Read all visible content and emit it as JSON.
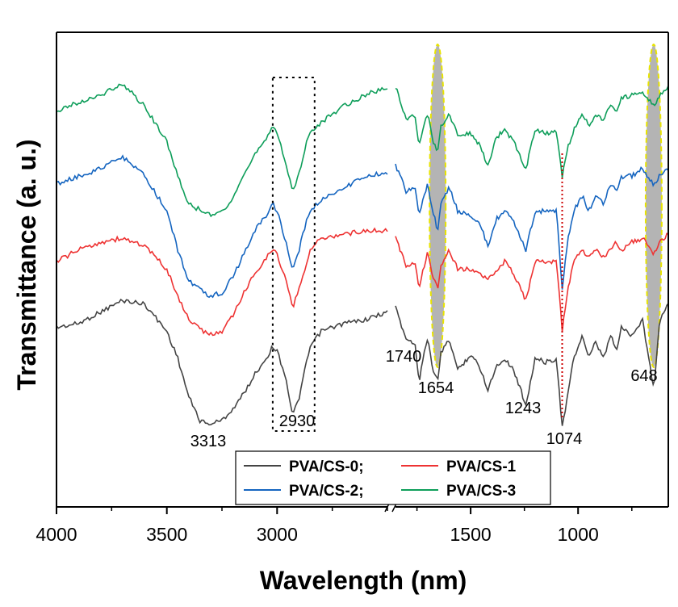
{
  "chart_data": {
    "type": "line",
    "xlabel": "Wavelength (nm)",
    "ylabel": "Transmittance (a. u.)",
    "x_axis_break": true,
    "x_segments": [
      {
        "range": [
          4000,
          2500
        ],
        "ticks": [
          4000,
          3500,
          3000
        ]
      },
      {
        "range": [
          1850,
          580
        ],
        "ticks": [
          1500,
          1000
        ]
      }
    ],
    "tick_labels": [
      "4000",
      "3500",
      "3000",
      "1500",
      "1000"
    ],
    "annotations": [
      {
        "text": "3313",
        "x": 3313
      },
      {
        "text": "2930",
        "x": 2930
      },
      {
        "text": "1740",
        "x": 1740
      },
      {
        "text": "1654",
        "x": 1654
      },
      {
        "text": "1243",
        "x": 1243
      },
      {
        "text": "1074",
        "x": 1074
      },
      {
        "text": "648",
        "x": 648
      }
    ],
    "highlight_regions": [
      {
        "x": 1654,
        "shape": "ellipse",
        "color": "#b4b4b4"
      },
      {
        "x": 648,
        "shape": "ellipse",
        "color": "#b4b4b4"
      }
    ],
    "highlight_box": {
      "x_range": [
        3020,
        2830
      ]
    },
    "reference_line": {
      "x": 1074,
      "color": "#cc0000",
      "style": "dotted"
    },
    "legend": {
      "placement": "bottom-center",
      "entries": [
        "PVA/CS-0;",
        "PVA/CS-1",
        "PVA/CS-2;",
        "PVA/CS-3"
      ]
    },
    "series": [
      {
        "name": "PVA/CS-0",
        "color": "#444444",
        "high": [
          [
            4000,
            72
          ],
          [
            3900,
            71
          ],
          [
            3800,
            68
          ],
          [
            3700,
            65
          ],
          [
            3600,
            66
          ],
          [
            3500,
            73
          ],
          [
            3450,
            80
          ],
          [
            3400,
            90
          ],
          [
            3350,
            96
          ],
          [
            3313,
            97
          ],
          [
            3250,
            96
          ],
          [
            3200,
            93
          ],
          [
            3150,
            89
          ],
          [
            3100,
            84
          ],
          [
            3050,
            80
          ],
          [
            3020,
            77
          ],
          [
            3000,
            78
          ],
          [
            2960,
            85
          ],
          [
            2930,
            95
          ],
          [
            2900,
            90
          ],
          [
            2870,
            82
          ],
          [
            2850,
            77
          ],
          [
            2800,
            73
          ],
          [
            2700,
            71
          ],
          [
            2600,
            70
          ],
          [
            2500,
            68
          ]
        ],
        "low": [
          [
            1850,
            67
          ],
          [
            1800,
            75
          ],
          [
            1760,
            76
          ],
          [
            1740,
            86
          ],
          [
            1720,
            79
          ],
          [
            1700,
            75
          ],
          [
            1680,
            82
          ],
          [
            1654,
            86
          ],
          [
            1640,
            79
          ],
          [
            1600,
            75
          ],
          [
            1560,
            83
          ],
          [
            1500,
            79
          ],
          [
            1460,
            82
          ],
          [
            1420,
            88
          ],
          [
            1380,
            82
          ],
          [
            1340,
            80
          ],
          [
            1300,
            83
          ],
          [
            1243,
            92
          ],
          [
            1200,
            80
          ],
          [
            1150,
            81
          ],
          [
            1100,
            80
          ],
          [
            1074,
            98
          ],
          [
            1050,
            90
          ],
          [
            1020,
            80
          ],
          [
            980,
            74
          ],
          [
            950,
            80
          ],
          [
            920,
            76
          ],
          [
            880,
            80
          ],
          [
            850,
            74
          ],
          [
            820,
            78
          ],
          [
            800,
            72
          ],
          [
            750,
            74
          ],
          [
            700,
            70
          ],
          [
            648,
            88
          ],
          [
            620,
            70
          ],
          [
            580,
            66
          ]
        ]
      },
      {
        "name": "PVA/CS-1",
        "color": "#ee3333",
        "high": [
          [
            4000,
            55
          ],
          [
            3900,
            52
          ],
          [
            3800,
            50
          ],
          [
            3700,
            49
          ],
          [
            3600,
            51
          ],
          [
            3500,
            57
          ],
          [
            3450,
            64
          ],
          [
            3400,
            70
          ],
          [
            3313,
            74
          ],
          [
            3250,
            73
          ],
          [
            3200,
            69
          ],
          [
            3150,
            63
          ],
          [
            3100,
            58
          ],
          [
            3050,
            54
          ],
          [
            3020,
            52
          ],
          [
            3000,
            53
          ],
          [
            2960,
            60
          ],
          [
            2930,
            67
          ],
          [
            2900,
            62
          ],
          [
            2870,
            56
          ],
          [
            2850,
            52
          ],
          [
            2800,
            49
          ],
          [
            2700,
            48
          ],
          [
            2600,
            47
          ],
          [
            2500,
            47
          ]
        ],
        "low": [
          [
            1850,
            49
          ],
          [
            1800,
            56
          ],
          [
            1760,
            55
          ],
          [
            1740,
            62
          ],
          [
            1720,
            57
          ],
          [
            1700,
            52
          ],
          [
            1680,
            58
          ],
          [
            1654,
            62
          ],
          [
            1640,
            56
          ],
          [
            1600,
            52
          ],
          [
            1560,
            57
          ],
          [
            1500,
            57
          ],
          [
            1460,
            58
          ],
          [
            1420,
            60
          ],
          [
            1380,
            57
          ],
          [
            1340,
            55
          ],
          [
            1300,
            58
          ],
          [
            1243,
            65
          ],
          [
            1200,
            55
          ],
          [
            1150,
            55
          ],
          [
            1100,
            55
          ],
          [
            1074,
            73
          ],
          [
            1050,
            63
          ],
          [
            1020,
            55
          ],
          [
            980,
            52
          ],
          [
            950,
            54
          ],
          [
            920,
            52
          ],
          [
            880,
            54
          ],
          [
            850,
            52
          ],
          [
            820,
            50
          ],
          [
            800,
            52
          ],
          [
            750,
            50
          ],
          [
            700,
            49
          ],
          [
            648,
            53
          ],
          [
            620,
            50
          ],
          [
            580,
            48
          ]
        ]
      },
      {
        "name": "PVA/CS-2",
        "color": "#1565c0",
        "high": [
          [
            4000,
            35
          ],
          [
            3900,
            33
          ],
          [
            3800,
            31
          ],
          [
            3700,
            28
          ],
          [
            3600,
            33
          ],
          [
            3500,
            42
          ],
          [
            3450,
            52
          ],
          [
            3400,
            60
          ],
          [
            3313,
            64
          ],
          [
            3250,
            63
          ],
          [
            3200,
            59
          ],
          [
            3150,
            53
          ],
          [
            3100,
            47
          ],
          [
            3050,
            43
          ],
          [
            3020,
            40
          ],
          [
            3000,
            42
          ],
          [
            2960,
            50
          ],
          [
            2930,
            57
          ],
          [
            2900,
            52
          ],
          [
            2870,
            45
          ],
          [
            2850,
            42
          ],
          [
            2800,
            39
          ],
          [
            2700,
            36
          ],
          [
            2600,
            33
          ],
          [
            2500,
            32
          ]
        ],
        "low": [
          [
            1850,
            30
          ],
          [
            1800,
            37
          ],
          [
            1760,
            36
          ],
          [
            1740,
            43
          ],
          [
            1720,
            38
          ],
          [
            1700,
            35
          ],
          [
            1680,
            41
          ],
          [
            1654,
            47
          ],
          [
            1640,
            40
          ],
          [
            1600,
            36
          ],
          [
            1560,
            42
          ],
          [
            1500,
            43
          ],
          [
            1460,
            45
          ],
          [
            1420,
            51
          ],
          [
            1380,
            44
          ],
          [
            1340,
            42
          ],
          [
            1300,
            45
          ],
          [
            1243,
            52
          ],
          [
            1200,
            42
          ],
          [
            1150,
            42
          ],
          [
            1100,
            42
          ],
          [
            1074,
            62
          ],
          [
            1050,
            50
          ],
          [
            1020,
            42
          ],
          [
            980,
            38
          ],
          [
            950,
            42
          ],
          [
            920,
            38
          ],
          [
            880,
            40
          ],
          [
            850,
            35
          ],
          [
            820,
            37
          ],
          [
            800,
            33
          ],
          [
            750,
            33
          ],
          [
            700,
            31
          ],
          [
            648,
            35
          ],
          [
            620,
            33
          ],
          [
            580,
            31
          ]
        ]
      },
      {
        "name": "PVA/CS-3",
        "color": "#0e9e5a",
        "high": [
          [
            4000,
            16
          ],
          [
            3900,
            14
          ],
          [
            3800,
            12
          ],
          [
            3700,
            9
          ],
          [
            3600,
            15
          ],
          [
            3500,
            24
          ],
          [
            3450,
            33
          ],
          [
            3400,
            40
          ],
          [
            3313,
            43
          ],
          [
            3250,
            42
          ],
          [
            3200,
            39
          ],
          [
            3150,
            33
          ],
          [
            3100,
            27
          ],
          [
            3050,
            23
          ],
          [
            3020,
            20
          ],
          [
            3000,
            22
          ],
          [
            2960,
            30
          ],
          [
            2930,
            37
          ],
          [
            2900,
            32
          ],
          [
            2870,
            25
          ],
          [
            2850,
            22
          ],
          [
            2800,
            19
          ],
          [
            2700,
            15
          ],
          [
            2600,
            12
          ],
          [
            2500,
            10
          ]
        ],
        "low": [
          [
            1850,
            10
          ],
          [
            1800,
            18
          ],
          [
            1760,
            17
          ],
          [
            1740,
            25
          ],
          [
            1720,
            20
          ],
          [
            1700,
            17
          ],
          [
            1680,
            23
          ],
          [
            1654,
            27
          ],
          [
            1640,
            20
          ],
          [
            1600,
            17
          ],
          [
            1560,
            22
          ],
          [
            1500,
            22
          ],
          [
            1460,
            25
          ],
          [
            1420,
            30
          ],
          [
            1380,
            23
          ],
          [
            1340,
            21
          ],
          [
            1300,
            24
          ],
          [
            1243,
            31
          ],
          [
            1200,
            21
          ],
          [
            1150,
            22
          ],
          [
            1100,
            21
          ],
          [
            1074,
            33
          ],
          [
            1050,
            26
          ],
          [
            1020,
            21
          ],
          [
            980,
            17
          ],
          [
            950,
            20
          ],
          [
            920,
            17
          ],
          [
            880,
            19
          ],
          [
            850,
            14
          ],
          [
            820,
            16
          ],
          [
            800,
            13
          ],
          [
            750,
            12
          ],
          [
            700,
            11
          ],
          [
            648,
            15
          ],
          [
            620,
            12
          ],
          [
            580,
            10
          ]
        ]
      }
    ]
  }
}
